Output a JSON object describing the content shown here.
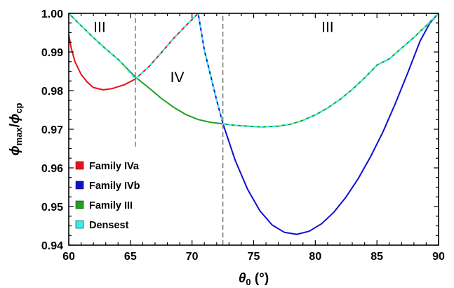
{
  "chart_data": {
    "type": "line",
    "xlabel": {
      "symbol": "θ",
      "sub": "0",
      "unit": " (°)"
    },
    "ylabel": {
      "num": "ϕ",
      "num_sub": "max",
      "slash": "/",
      "den": "ϕ",
      "den_sub": "cp"
    },
    "xlim": [
      60,
      90
    ],
    "ylim": [
      0.94,
      1.0
    ],
    "x_ticks": [
      "60",
      "65",
      "70",
      "75",
      "80",
      "85",
      "90"
    ],
    "y_ticks": [
      "0.94",
      "0.95",
      "0.96",
      "0.97",
      "0.98",
      "0.99",
      "1.00"
    ],
    "region_labels": [
      {
        "text": "III",
        "x": 62.5,
        "y": 0.9965
      },
      {
        "text": "IV",
        "x": 68.8,
        "y": 0.9835
      },
      {
        "text": "III",
        "x": 81.0,
        "y": 0.9965
      }
    ],
    "boundaries": [
      {
        "x": 65.4,
        "y_from": 0.9655,
        "y_to": 1.0
      },
      {
        "x": 72.5,
        "y_from": 0.94,
        "y_to": 1.0
      }
    ],
    "series": [
      {
        "name": "Family IVa",
        "color": "#e8101a",
        "x": [
          60.0,
          60.2,
          60.5,
          61.0,
          61.5,
          62.0,
          62.8,
          63.5,
          64.5,
          65.4,
          66.5,
          67.5,
          68.5,
          69.5,
          70.5
        ],
        "y": [
          0.9945,
          0.991,
          0.9875,
          0.9842,
          0.9822,
          0.9808,
          0.9802,
          0.9805,
          0.9815,
          0.983,
          0.9862,
          0.9898,
          0.9935,
          0.9968,
          1.0
        ]
      },
      {
        "name": "Family IVb",
        "color": "#1010d0",
        "x": [
          70.5,
          71.0,
          71.5,
          72.0,
          72.5,
          73.5,
          74.5,
          75.5,
          76.5,
          77.5,
          78.5,
          79.5,
          80.5,
          81.5,
          82.5,
          83.5,
          84.5,
          85.5,
          86.5,
          87.5,
          88.5,
          89.3,
          90.0
        ],
        "y": [
          1.0,
          0.9905,
          0.984,
          0.9775,
          0.9715,
          0.962,
          0.9545,
          0.9489,
          0.9452,
          0.9433,
          0.9428,
          0.9436,
          0.9455,
          0.9485,
          0.9525,
          0.9573,
          0.963,
          0.9694,
          0.9767,
          0.9846,
          0.9928,
          0.9975,
          1.0
        ]
      },
      {
        "name": "Family III",
        "color": "#20a020",
        "x": [
          60.0,
          61.0,
          62.0,
          63.0,
          64.0,
          65.4,
          66.5,
          67.5,
          68.5,
          69.5,
          70.5,
          71.5,
          72.5,
          73.5,
          74.5,
          75.7,
          77.0,
          78.0,
          79.0,
          80.0,
          81.0,
          82.0,
          83.0,
          84.0,
          85.0,
          86.0,
          87.0,
          88.0,
          89.0,
          90.0
        ],
        "y": [
          1.0,
          0.9968,
          0.9937,
          0.9908,
          0.9881,
          0.9835,
          0.9807,
          0.978,
          0.9757,
          0.9738,
          0.9725,
          0.9718,
          0.9714,
          0.971,
          0.9708,
          0.9706,
          0.9708,
          0.9713,
          0.9723,
          0.9737,
          0.9755,
          0.9777,
          0.9803,
          0.9833,
          0.9866,
          0.9882,
          0.991,
          0.9938,
          0.9968,
          1.0
        ]
      },
      {
        "name": "Densest",
        "color": "#33eeee",
        "x": [
          60.0,
          61.0,
          62.0,
          63.0,
          64.0,
          65.4,
          66.5,
          67.5,
          68.5,
          69.5,
          70.5,
          71.0,
          71.5,
          72.0,
          72.5,
          73.5,
          74.5,
          75.7,
          77.0,
          78.0,
          79.0,
          80.0,
          81.0,
          82.0,
          83.0,
          84.0,
          85.0,
          86.0,
          87.0,
          88.0,
          89.0,
          90.0
        ],
        "y": [
          1.0,
          0.9968,
          0.9937,
          0.9908,
          0.9881,
          0.983,
          0.9862,
          0.9898,
          0.9935,
          0.9968,
          1.0,
          0.9905,
          0.984,
          0.9775,
          0.9714,
          0.971,
          0.9708,
          0.9706,
          0.9708,
          0.9713,
          0.9723,
          0.9737,
          0.9755,
          0.9777,
          0.9803,
          0.9833,
          0.9866,
          0.9882,
          0.991,
          0.9938,
          0.9968,
          1.0
        ]
      }
    ],
    "legend": [
      {
        "label": "Family IVa",
        "color": "#e8101a"
      },
      {
        "label": "Family IVb",
        "color": "#1010d0"
      },
      {
        "label": "Family III",
        "color": "#20a020"
      },
      {
        "label": "Densest",
        "color": "#33eeee"
      }
    ]
  }
}
